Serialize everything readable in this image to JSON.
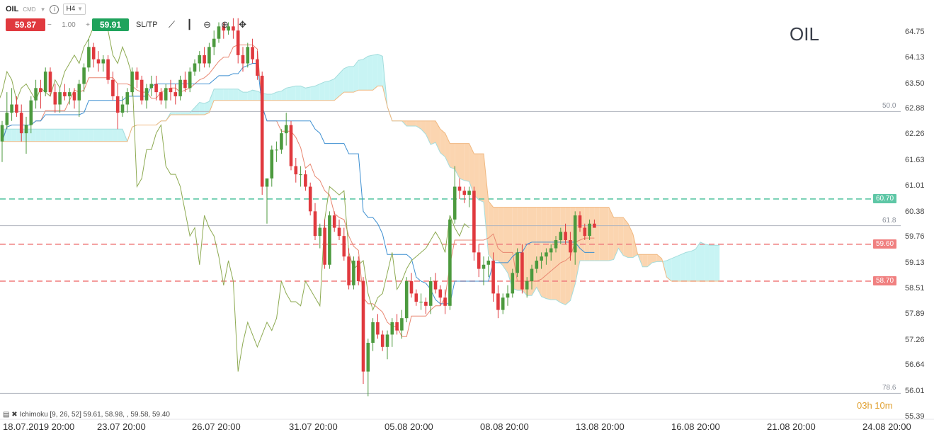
{
  "toolbar": {
    "symbol": "OIL",
    "symbol_type": "CMD",
    "timeframe": "H4",
    "sell_price": "59.87",
    "quantity": "1.00",
    "qty_minus": "−",
    "qty_plus": "+",
    "buy_price": "59.91",
    "sltp_label": "SL/TP",
    "info_symbol": "i"
  },
  "chart_title": "OIL",
  "countdown": "03h 10m",
  "indicator": {
    "icons": "▤ ✖",
    "label": "Ichimoku [9, 26, 52] 59.61, 58.98, , 59.58, 59.40"
  },
  "colors": {
    "bull": "#4c9a3e",
    "bear": "#e0393e",
    "kijun": "#3d8fd1",
    "tenkan": "#e88670",
    "chikou": "#8daa52",
    "kumo_bull": "#fbd5b0",
    "kumo_bear": "#c8f4f4",
    "fib": "#b0b5be",
    "green_level": "#5ec7a6",
    "red_level": "#f08080"
  },
  "chart_data": {
    "type": "candlestick",
    "y_ticks": [
      "64.75",
      "64.13",
      "63.50",
      "62.88",
      "62.26",
      "61.63",
      "61.01",
      "60.38",
      "59.76",
      "59.13",
      "58.51",
      "57.89",
      "57.26",
      "56.64",
      "56.01",
      "55.39"
    ],
    "ylim": [
      55.39,
      64.75
    ],
    "x_ticks": [
      "18.07.2019 20:00",
      "23.07 20:00",
      "26.07 20:00",
      "31.07 20:00",
      "05.08 20:00",
      "08.08 20:00",
      "13.08 20:00",
      "16.08 20:00",
      "21.08 20:00",
      "24.08 20:00"
    ],
    "fib_levels": [
      {
        "label": "50.0",
        "value": 62.83
      },
      {
        "label": "61.8",
        "value": 60.05
      },
      {
        "label": "78.6",
        "value": 55.97
      }
    ],
    "horizontal_levels": [
      {
        "label": "60.70",
        "value": 60.7,
        "color": "#5ec7a6"
      },
      {
        "label": "59.60",
        "value": 59.6,
        "color": "#f08080"
      },
      {
        "label": "58.70",
        "value": 58.7,
        "color": "#f08080"
      }
    ],
    "candles": [
      [
        62.1,
        62.6,
        61.6,
        62.5
      ],
      [
        62.5,
        63.3,
        62.4,
        62.8
      ],
      [
        62.8,
        63.4,
        62.6,
        63.0
      ],
      [
        63.0,
        63.2,
        62.7,
        62.8
      ],
      [
        62.8,
        63.0,
        62.1,
        62.3
      ],
      [
        62.3,
        62.7,
        61.8,
        62.5
      ],
      [
        62.5,
        63.2,
        62.3,
        63.1
      ],
      [
        63.1,
        63.6,
        62.9,
        63.4
      ],
      [
        63.4,
        63.6,
        62.9,
        63.3
      ],
      [
        63.3,
        63.9,
        63.2,
        63.8
      ],
      [
        63.8,
        63.9,
        63.2,
        63.3
      ],
      [
        63.3,
        63.5,
        62.8,
        63.0
      ],
      [
        63.0,
        63.4,
        62.8,
        63.3
      ],
      [
        63.3,
        63.5,
        63.1,
        63.2
      ],
      [
        63.2,
        63.4,
        63.0,
        63.3
      ],
      [
        63.3,
        63.4,
        62.9,
        63.1
      ],
      [
        63.1,
        63.6,
        62.7,
        63.5
      ],
      [
        63.5,
        64.0,
        63.3,
        63.9
      ],
      [
        63.9,
        64.6,
        63.8,
        64.4
      ],
      [
        64.4,
        64.5,
        63.9,
        64.1
      ],
      [
        64.1,
        64.3,
        63.8,
        64.0
      ],
      [
        64.0,
        64.2,
        63.8,
        64.1
      ],
      [
        64.1,
        64.2,
        63.5,
        63.6
      ],
      [
        63.6,
        63.8,
        63.1,
        63.2
      ],
      [
        63.2,
        63.5,
        62.4,
        62.8
      ],
      [
        62.8,
        63.2,
        62.7,
        63.0
      ],
      [
        63.0,
        63.4,
        62.8,
        63.3
      ],
      [
        63.3,
        63.9,
        63.2,
        63.8
      ],
      [
        63.8,
        63.9,
        63.4,
        63.6
      ],
      [
        63.6,
        63.7,
        63.0,
        63.1
      ],
      [
        63.1,
        63.5,
        62.9,
        63.4
      ],
      [
        63.4,
        63.7,
        63.2,
        63.5
      ],
      [
        63.5,
        63.7,
        63.1,
        63.3
      ],
      [
        63.3,
        63.4,
        63.0,
        63.1
      ],
      [
        63.1,
        63.5,
        62.9,
        63.4
      ],
      [
        63.4,
        63.6,
        63.1,
        63.3
      ],
      [
        63.3,
        63.5,
        63.0,
        63.2
      ],
      [
        63.2,
        63.7,
        63.1,
        63.6
      ],
      [
        63.6,
        63.8,
        63.3,
        63.4
      ],
      [
        63.4,
        63.9,
        63.3,
        63.8
      ],
      [
        63.8,
        64.1,
        63.7,
        64.0
      ],
      [
        64.0,
        64.3,
        63.8,
        64.2
      ],
      [
        64.2,
        64.4,
        63.9,
        64.0
      ],
      [
        64.0,
        64.5,
        63.9,
        64.4
      ],
      [
        64.4,
        64.8,
        64.2,
        64.6
      ],
      [
        64.6,
        65.0,
        64.5,
        64.9
      ],
      [
        64.9,
        65.0,
        64.6,
        64.8
      ],
      [
        64.8,
        65.0,
        64.7,
        64.9
      ],
      [
        64.9,
        65.1,
        64.6,
        64.8
      ],
      [
        64.8,
        65.1,
        64.0,
        64.2
      ],
      [
        64.2,
        64.4,
        63.8,
        64.0
      ],
      [
        64.0,
        64.5,
        63.9,
        64.4
      ],
      [
        64.4,
        64.6,
        64.0,
        64.1
      ],
      [
        64.1,
        64.3,
        63.6,
        63.7
      ],
      [
        63.7,
        63.8,
        60.8,
        61.0
      ],
      [
        61.0,
        61.2,
        60.1,
        61.2
      ],
      [
        61.2,
        62.0,
        61.0,
        61.9
      ],
      [
        61.9,
        62.1,
        61.6,
        61.9
      ],
      [
        61.9,
        62.4,
        61.8,
        62.3
      ],
      [
        62.3,
        62.8,
        62.0,
        62.5
      ],
      [
        62.5,
        62.6,
        61.4,
        61.5
      ],
      [
        61.5,
        61.7,
        61.1,
        61.3
      ],
      [
        61.3,
        61.5,
        61.0,
        61.3
      ],
      [
        61.3,
        61.4,
        60.9,
        61.0
      ],
      [
        61.0,
        61.1,
        60.3,
        60.4
      ],
      [
        60.4,
        60.6,
        59.7,
        59.8
      ],
      [
        59.8,
        60.1,
        59.5,
        60.0
      ],
      [
        60.0,
        60.2,
        59.0,
        59.1
      ],
      [
        59.1,
        60.4,
        59.0,
        60.3
      ],
      [
        60.3,
        60.4,
        59.9,
        60.0
      ],
      [
        60.0,
        60.2,
        59.7,
        59.8
      ],
      [
        59.8,
        60.0,
        59.2,
        59.3
      ],
      [
        59.3,
        59.5,
        58.5,
        58.6
      ],
      [
        58.6,
        59.3,
        58.5,
        59.2
      ],
      [
        59.2,
        59.3,
        58.6,
        58.7
      ],
      [
        58.7,
        58.8,
        56.2,
        56.5
      ],
      [
        56.5,
        57.3,
        55.9,
        57.2
      ],
      [
        57.2,
        57.8,
        57.0,
        57.7
      ],
      [
        57.7,
        57.9,
        57.3,
        57.4
      ],
      [
        57.4,
        57.5,
        57.0,
        57.1
      ],
      [
        57.1,
        57.5,
        56.8,
        57.4
      ],
      [
        57.4,
        57.8,
        57.1,
        57.7
      ],
      [
        57.7,
        57.9,
        57.4,
        57.5
      ],
      [
        57.5,
        58.0,
        57.3,
        57.8
      ],
      [
        57.8,
        58.8,
        57.7,
        58.7
      ],
      [
        58.7,
        58.9,
        58.3,
        58.4
      ],
      [
        58.4,
        58.5,
        58.1,
        58.2
      ],
      [
        58.2,
        58.4,
        58.0,
        58.2
      ],
      [
        58.2,
        58.3,
        57.9,
        58.1
      ],
      [
        58.1,
        58.8,
        57.9,
        58.7
      ],
      [
        58.7,
        58.9,
        58.4,
        58.5
      ],
      [
        58.5,
        58.6,
        58.1,
        58.3
      ],
      [
        58.3,
        58.5,
        57.9,
        58.1
      ],
      [
        58.1,
        60.3,
        58.0,
        60.2
      ],
      [
        60.2,
        61.5,
        60.1,
        61.0
      ],
      [
        61.0,
        61.2,
        60.7,
        60.9
      ],
      [
        60.9,
        61.0,
        60.6,
        60.8
      ],
      [
        60.8,
        61.0,
        60.5,
        60.9
      ],
      [
        60.9,
        61.0,
        59.2,
        59.4
      ],
      [
        59.4,
        59.6,
        58.8,
        59.0
      ],
      [
        59.0,
        59.3,
        58.6,
        59.1
      ],
      [
        59.1,
        59.3,
        58.8,
        59.2
      ],
      [
        59.2,
        59.4,
        58.2,
        58.4
      ],
      [
        58.4,
        58.6,
        57.8,
        58.0
      ],
      [
        58.0,
        58.4,
        57.9,
        58.3
      ],
      [
        58.3,
        58.6,
        58.1,
        58.4
      ],
      [
        58.4,
        59.0,
        58.3,
        58.9
      ],
      [
        58.9,
        59.5,
        58.8,
        59.4
      ],
      [
        59.4,
        59.6,
        58.4,
        58.5
      ],
      [
        58.5,
        58.8,
        58.3,
        58.7
      ],
      [
        58.7,
        59.1,
        58.5,
        59.0
      ],
      [
        59.0,
        59.3,
        58.9,
        59.2
      ],
      [
        59.2,
        59.4,
        59.0,
        59.3
      ],
      [
        59.3,
        59.5,
        59.1,
        59.4
      ],
      [
        59.4,
        59.6,
        59.2,
        59.5
      ],
      [
        59.5,
        59.8,
        59.4,
        59.7
      ],
      [
        59.7,
        60.0,
        59.6,
        59.9
      ],
      [
        59.9,
        60.1,
        59.6,
        59.7
      ],
      [
        59.7,
        59.9,
        59.2,
        59.4
      ],
      [
        59.4,
        60.4,
        59.1,
        60.3
      ],
      [
        60.3,
        60.4,
        59.9,
        60.0
      ],
      [
        60.0,
        60.1,
        59.7,
        59.8
      ],
      [
        59.8,
        60.2,
        59.7,
        60.1
      ],
      [
        60.1,
        60.2,
        60.0,
        60.0
      ]
    ]
  }
}
